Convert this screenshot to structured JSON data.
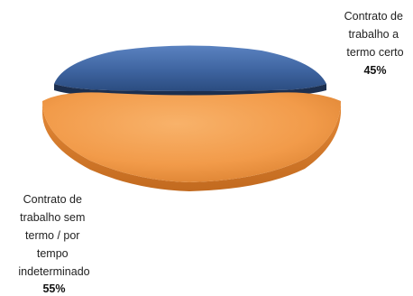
{
  "chart_data": {
    "type": "pie",
    "title": "",
    "legend": "none",
    "slices": [
      {
        "label_lines": [
          "Contrato de",
          "trabalho a",
          "termo certo"
        ],
        "value": 45,
        "value_label": "45%",
        "color": "#3E64A0"
      },
      {
        "label_lines": [
          "Contrato de",
          "trabalho sem",
          "termo / por",
          "tempo",
          "indeterminado"
        ],
        "value": 55,
        "value_label": "55%",
        "color": "#F29B4A"
      }
    ]
  }
}
